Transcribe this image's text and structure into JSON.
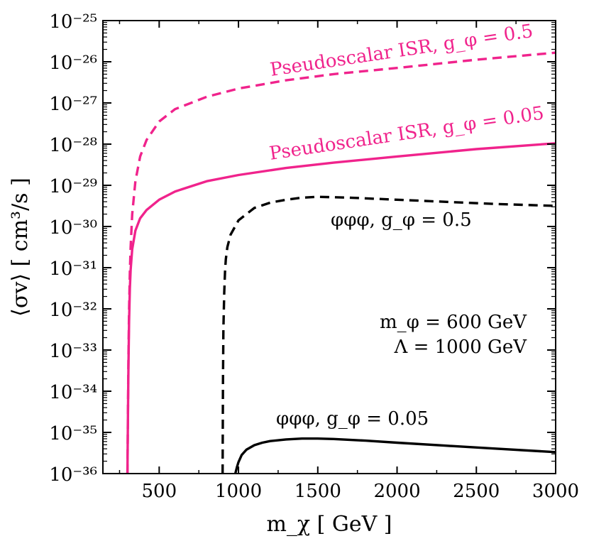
{
  "chart_data": {
    "type": "line",
    "title": "",
    "xlabel": "m_χ [ GeV ]",
    "ylabel": "⟨σv⟩ [ cm³/s ]",
    "xscale": "linear",
    "yscale": "log",
    "xlim": [
      145,
      3000
    ],
    "ylim_exponent": [
      -36,
      -25
    ],
    "x_ticks": [
      500,
      1000,
      1500,
      2000,
      2500,
      3000
    ],
    "x_tick_labels": [
      "500",
      "1000",
      "1500",
      "2000",
      "2500",
      "3000"
    ],
    "y_tick_exponents": [
      -25,
      -26,
      -27,
      -28,
      -29,
      -30,
      -31,
      -32,
      -33,
      -34,
      -35,
      -36
    ],
    "y_tick_labels": [
      "10⁻²⁵",
      "10⁻²⁶",
      "10⁻²⁷",
      "10⁻²⁸",
      "10⁻²⁹",
      "10⁻³⁰",
      "10⁻³¹",
      "10⁻³²",
      "10⁻³³",
      "10⁻³⁴",
      "10⁻³⁵",
      "10⁻³⁶"
    ],
    "colors": {
      "pseudoscalar": "#f0238c",
      "phi": "#000000"
    },
    "series": [
      {
        "name": "Pseudoscalar ISR, g_φ = 0.5",
        "style": "dashed",
        "color": "#f0238c",
        "x": [
          300,
          303,
          306,
          310,
          315,
          320,
          330,
          350,
          380,
          420,
          500,
          600,
          800,
          1000,
          1300,
          1600,
          2000,
          2500,
          3000
        ],
        "log10_y": [
          -36.0,
          -34.5,
          -33.2,
          -32.0,
          -31.1,
          -30.5,
          -29.7,
          -28.9,
          -28.3,
          -27.9,
          -27.45,
          -27.15,
          -26.85,
          -26.65,
          -26.45,
          -26.3,
          -26.15,
          -25.95,
          -25.78
        ]
      },
      {
        "name": "Pseudoscalar ISR, g_φ = 0.05",
        "style": "solid",
        "color": "#f0238c",
        "x": [
          300,
          303,
          306,
          310,
          315,
          320,
          330,
          350,
          380,
          420,
          500,
          600,
          800,
          1000,
          1300,
          1600,
          2000,
          2500,
          3000
        ],
        "log10_y": [
          -36.0,
          -34.6,
          -33.4,
          -32.3,
          -31.5,
          -31.05,
          -30.55,
          -30.1,
          -29.8,
          -29.6,
          -29.35,
          -29.15,
          -28.9,
          -28.75,
          -28.58,
          -28.45,
          -28.3,
          -28.12,
          -27.98
        ]
      },
      {
        "name": "φφφ, g_φ = 0.5",
        "style": "dashed",
        "color": "#000000",
        "x": [
          900,
          902,
          905,
          910,
          915,
          920,
          930,
          950,
          1000,
          1100,
          1200,
          1300,
          1400,
          1500,
          1700,
          2000,
          2300,
          2600,
          3000
        ],
        "log10_y": [
          -36.0,
          -33.8,
          -32.5,
          -31.6,
          -31.1,
          -30.8,
          -30.5,
          -30.2,
          -29.85,
          -29.55,
          -29.42,
          -29.35,
          -29.3,
          -29.28,
          -29.3,
          -29.35,
          -29.4,
          -29.45,
          -29.5
        ]
      },
      {
        "name": "φφφ, g_φ = 0.05",
        "style": "solid",
        "color": "#000000",
        "x": [
          980,
          990,
          1000,
          1020,
          1050,
          1100,
          1150,
          1200,
          1300,
          1400,
          1500,
          1600,
          1800,
          2000,
          2300,
          2600,
          3000
        ],
        "log10_y": [
          -36.0,
          -35.85,
          -35.72,
          -35.55,
          -35.42,
          -35.31,
          -35.25,
          -35.21,
          -35.17,
          -35.15,
          -35.15,
          -35.16,
          -35.2,
          -35.25,
          -35.32,
          -35.39,
          -35.48
        ]
      }
    ],
    "annotations": {
      "ps05": "Pseudoscalar ISR, g_φ = 0.5",
      "ps005": "Pseudoscalar ISR, g_φ = 0.05",
      "phi05": "φφφ, g_φ = 0.5",
      "phi005": "φφφ, g_φ = 0.05",
      "mphi": "m_φ = 600 GeV",
      "lambda": "Λ =  1000 GeV"
    }
  }
}
